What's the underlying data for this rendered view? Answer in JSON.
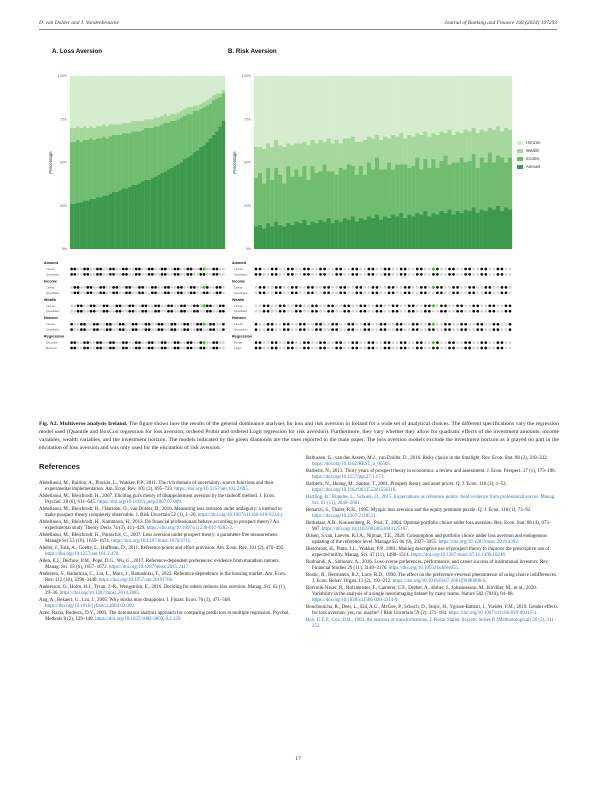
{
  "header": {
    "authors": "D. van Dolder and J. Vandenbroucke",
    "journal": "Journal of Banking and Finance 168 (2024) 107293"
  },
  "chart_data": [
    {
      "type": "area",
      "title": "A. Loss Aversion",
      "ylabel": "Percentage",
      "ylim": [
        0,
        100
      ],
      "yticks": [
        "0%",
        "25%",
        "50%",
        "75%",
        "100%"
      ],
      "series_colors": {
        "Amount": "#3d9a4a",
        "Income": "#70bd6f",
        "Wealth": "#a6d79c",
        "Horizon": "#d5ecce"
      },
      "x": [
        1,
        2,
        3,
        4,
        5,
        6,
        7,
        8,
        9,
        10,
        11,
        12,
        13,
        14,
        15,
        16,
        17,
        18,
        19,
        20,
        21,
        22,
        23,
        24,
        25,
        26,
        27,
        28,
        29,
        30,
        31,
        32,
        33,
        34,
        35,
        36,
        37,
        38,
        39,
        40,
        41,
        42,
        43,
        44,
        45,
        46,
        47,
        48
      ],
      "series": [
        {
          "name": "Amount",
          "values": [
            26,
            26,
            27,
            27,
            28,
            28,
            29,
            29,
            30,
            30,
            31,
            31,
            32,
            33,
            33,
            34,
            35,
            35,
            36,
            37,
            37,
            38,
            39,
            40,
            40,
            41,
            42,
            43,
            44,
            45,
            46,
            47,
            48,
            49,
            50,
            52,
            53,
            54,
            56,
            57,
            59,
            60,
            62,
            64,
            66,
            68,
            71,
            74
          ]
        },
        {
          "name": "Income",
          "values": [
            36,
            36,
            36,
            35,
            35,
            35,
            35,
            34,
            34,
            34,
            34,
            33,
            33,
            33,
            33,
            32,
            32,
            32,
            31,
            31,
            31,
            30,
            30,
            30,
            30,
            29,
            29,
            28,
            28,
            28,
            27,
            27,
            26,
            26,
            26,
            25,
            25,
            24,
            24,
            23,
            22,
            22,
            21,
            20,
            20,
            19,
            17,
            16
          ]
        },
        {
          "name": "Wealth",
          "values": [
            8,
            8,
            8,
            8,
            8,
            7,
            7,
            7,
            7,
            7,
            7,
            7,
            7,
            6,
            6,
            6,
            6,
            6,
            6,
            6,
            6,
            6,
            5,
            5,
            5,
            5,
            5,
            5,
            5,
            5,
            4,
            4,
            4,
            4,
            4,
            4,
            4,
            4,
            3,
            3,
            3,
            3,
            3,
            3,
            3,
            3,
            2,
            2
          ]
        },
        {
          "name": "Horizon",
          "values": [
            30,
            30,
            29,
            30,
            29,
            30,
            29,
            30,
            29,
            29,
            28,
            29,
            28,
            28,
            28,
            28,
            27,
            27,
            27,
            26,
            26,
            26,
            26,
            25,
            25,
            25,
            24,
            24,
            23,
            22,
            23,
            22,
            22,
            21,
            20,
            19,
            18,
            18,
            17,
            17,
            16,
            15,
            14,
            13,
            11,
            10,
            10,
            8
          ]
        }
      ],
      "spec_rows": [
        {
          "group": "Amount",
          "rows": [
            "Linear",
            "Quadratic"
          ]
        },
        {
          "group": "Income",
          "rows": [
            "Linear",
            "Quadratic"
          ]
        },
        {
          "group": "Wealth",
          "rows": [
            "Linear",
            "Quadratic"
          ]
        },
        {
          "group": "Horizon",
          "rows": [
            "Linear",
            "Quadratic"
          ]
        },
        {
          "group": "Regression",
          "rows": [
            "Quantile",
            "BoxCox"
          ]
        }
      ],
      "highlight_column": 42
    },
    {
      "type": "area",
      "title": "B. Risk Aversion",
      "ylabel": "Percentage",
      "ylim": [
        0,
        100
      ],
      "yticks": [
        "0%",
        "25%",
        "50%",
        "75%",
        "100%"
      ],
      "legend": [
        "Horizon",
        "Wealth",
        "Income",
        "Amount"
      ],
      "legend_position": "right",
      "x": [
        1,
        2,
        3,
        4,
        5,
        6,
        7,
        8,
        9,
        10,
        11,
        12,
        13,
        14,
        15,
        16,
        17,
        18,
        19,
        20,
        21,
        22,
        23,
        24,
        25,
        26,
        27,
        28,
        29,
        30,
        31,
        32,
        33,
        34,
        35,
        36,
        37,
        38,
        39,
        40,
        41,
        42,
        43,
        44,
        45,
        46,
        47,
        48,
        49,
        50,
        51,
        52,
        53,
        54,
        55,
        56,
        57,
        58,
        59,
        60,
        61,
        62,
        63,
        64
      ],
      "series": [
        {
          "name": "Amount",
          "values": [
            13,
            14,
            12,
            15,
            13,
            16,
            14,
            13,
            15,
            14,
            16,
            15,
            17,
            14,
            16,
            15,
            17,
            16,
            18,
            15,
            17,
            16,
            18,
            17,
            19,
            16,
            18,
            17,
            19,
            18,
            20,
            17,
            19,
            18,
            20,
            19,
            21,
            18,
            20,
            19,
            21,
            20,
            22,
            19,
            21,
            20,
            22,
            21,
            23,
            20,
            22,
            21,
            23,
            22,
            24,
            21,
            23,
            22,
            24,
            23,
            25,
            22,
            24,
            23
          ]
        },
        {
          "name": "Income",
          "values": [
            28,
            30,
            26,
            32,
            27,
            31,
            29,
            25,
            33,
            28,
            30,
            27,
            31,
            26,
            32,
            29,
            28,
            33,
            27,
            30,
            26,
            31,
            28,
            32,
            29,
            27,
            30,
            26,
            31,
            28,
            33,
            29,
            27,
            32,
            26,
            30,
            28,
            31,
            27,
            29,
            32,
            26,
            30,
            28,
            31,
            27,
            29,
            33,
            26,
            30,
            28,
            32,
            27,
            29,
            31,
            26,
            30,
            28,
            32,
            27,
            29,
            31,
            26,
            30
          ]
        },
        {
          "name": "Wealth",
          "values": [
            18,
            15,
            20,
            14,
            19,
            16,
            17,
            21,
            13,
            18,
            15,
            19,
            14,
            20,
            15,
            17,
            18,
            13,
            19,
            16,
            20,
            14,
            18,
            15,
            17,
            19,
            14,
            20,
            15,
            18,
            13,
            17,
            19,
            14,
            20,
            16,
            18,
            15,
            19,
            17,
            14,
            20,
            16,
            18,
            15,
            19,
            17,
            13,
            20,
            16,
            18,
            14,
            19,
            17,
            15,
            20,
            16,
            18,
            14,
            19,
            17,
            15,
            20,
            16
          ]
        },
        {
          "name": "Horizon",
          "values": [
            41,
            41,
            42,
            39,
            41,
            37,
            40,
            41,
            39,
            40,
            39,
            39,
            38,
            40,
            37,
            39,
            37,
            38,
            36,
            39,
            37,
            39,
            36,
            36,
            35,
            38,
            38,
            37,
            35,
            36,
            34,
            37,
            35,
            36,
            34,
            35,
            33,
            36,
            34,
            35,
            33,
            34,
            32,
            35,
            33,
            34,
            32,
            33,
            31,
            34,
            32,
            33,
            31,
            32,
            30,
            33,
            31,
            32,
            30,
            31,
            29,
            32,
            30,
            31
          ]
        }
      ],
      "spec_rows": [
        {
          "group": "Amount",
          "rows": [
            "Linear",
            "Quadratic"
          ]
        },
        {
          "group": "Income",
          "rows": [
            "Linear",
            "Quadratic"
          ]
        },
        {
          "group": "Wealth",
          "rows": [
            "Linear",
            "Quadratic"
          ]
        },
        {
          "group": "Horizon",
          "rows": [
            "Linear",
            "Quadratic"
          ]
        },
        {
          "group": "Regression",
          "rows": [
            "Probit",
            "Logit"
          ]
        }
      ],
      "highlight_column": 45
    }
  ],
  "caption": {
    "label": "Fig. A2. Multiverse analysis Ireland.",
    "text": " The figure shows how the results of the general dominance analyses for loss and risk aversion in Ireland for a wide set of analytical choices. The different specifications vary the regression model used (Quantile and BoxCox regression for loss aversion; ordered Probit and ordered Logit regression for risk aversion). Furthermore, they vary whether they allow for quadratic effects of the investment amounts, income variables, wealth variables, and the investment horizon. The models indicated by the green diamonds are the ones reported in the main paper. The loss aversion models exclude the investment horizon as it played no part in the elicitation of loss aversion and was only used for the elicitation of risk aversion."
  },
  "references_heading": "References",
  "references_left": [
    {
      "text": "Abdellaoui, M., Baillon, A., Placido, L., Wakker, P.P., 2011. The rich domain of uncertainty: source functions and their experimental implementation. Am. Econ. Rev. 101 (2), 695–723. ",
      "link": "https://doi.org/10.1257/aer.101.2.695."
    },
    {
      "text": "Abdellaoui, M., Bleichrodt, H., 2007. Eliciting gul's theory of disappointment aversion by the tradeoff method. J. Econ. Psychol. 28 (6), 631–645. ",
      "link": "https://doi.org/10.1016/j.joep.2007.07.009."
    },
    {
      "text": "Abdellaoui, M., Bleichrodt, H., l'Haridon, O., van Dolder, D., 2016. Measuring loss aversion under ambiguity: a method to make prospect theory completely observable. J. Risk Uncertain 52 (1), 1–20. ",
      "link": "https://doi.org/10.1007/s11166-016-9234-y."
    },
    {
      "text": "Abdellaoui, M., Bleichrodt, H., Kammoun, H., 2013. Do financial professionals behave according to prospect theory? An experimental study. Theory Decis 74 (3), 411–429. ",
      "link": "https://doi.org/10.1007/s11238-011-9282-3."
    },
    {
      "text": "Abdellaoui, M., Bleichrodt, H., Paraschiv, C., 2007. Loss aversion under prospect theory: a parameter-free measurement. Manage Sci 53 (10), 1659–1674. ",
      "link": "https://doi.org/10.1287/mnsc.1070.0711."
    },
    {
      "text": "Abeler, J., Falk, A., Goette, L., Huffman, D., 2011. Reference points and effort provision. Am. Econ. Rev. 101 (2), 470–492. ",
      "link": "https://doi.org/10.1257/aer.101.2.470."
    },
    {
      "text": "Allen, E.J., Dechow, P.M., Pope, D.G., Wu, G., 2017. Reference-dependent preferences: evidence from marathon runners. Manag. Sci. 63 (6), 1657–1672. ",
      "link": "https://doi.org/10.1287/mnsc.2015.2417."
    },
    {
      "text": "Andersen, S., Badarinza, C., Liu, L., Marx, J., Ramadorai, T., 2022. Reference dependence in the housing market. Am. Econ. Rev. 112 (10), 3398–3440. ",
      "link": "https://doi.org/10.1257/aer.20191766."
    },
    {
      "text": "Andersson, O., Holm, H.J., Tyran, J.-R., Wengström, E., 2016. Deciding for others reduces loss aversion. Manag. Sci. 62 (1), 29–36. ",
      "link": "https://doi.org/10.1287/mnsc.2014.2085."
    },
    {
      "text": "Ang, A., Bekaert, G., Liu, J., 2005. Why stocks may disappoint. J. Financ Econ. 76 (3), 471–508. ",
      "link": "https://doi.org/10.1016/j.jfineco.2004.03.009."
    },
    {
      "text": "Azen, Razia, Budescu, D.V., 2003. The dominance analysis approach for comparing predictors in multiple regression. Psychol. Methods 8 (2), 129–148. ",
      "link": "https://doi.org/10.1037/1082-989X.8.2.129."
    }
  ],
  "references_right": [
    {
      "text": "Baltussen, G., van den Assem, M.J., van Dolder, D., 2016. Risky choice in the limelight. Rev. Econ. Stat. 98 (2), 318–332. ",
      "link": "https://doi.org/10.1162/REST_a_00505."
    },
    {
      "text": "Barberis, N., 2013. Thirty years of prospect theory in economics: a review and assessment. J. Econ. Perspect. 27 (1), 173–196. ",
      "link": "https://doi.org/10.1257/jep.27.1.173."
    },
    {
      "text": "Barberis, N., Huang, M., Santos, T., 2001. Prospect theory and asset prices. Q. J. Econ. 116 (1), 1–53. ",
      "link": "https://doi.org/10.1162/003355301556310."
    },
    {
      "text": "",
      "link": "Bartling, B., Brandes, L., Schunk, D., 2015. Expectations as reference points: field evidence from professional soccer. Manag. Sci. 61 (11), 2646–2661."
    },
    {
      "text": "Benartzi, S., Thaler, R.H., 1995. Myopic loss aversion and the equity premium puzzle. Q. J. Econ. 110 (1), 73–92. ",
      "link": "https://doi.org/10.2307/2118511."
    },
    {
      "text": "Berkelaar, A.B., Kouwenberg, R., Post, T., 2004. Optimal portfolio choice under loss aversion. Rev. Econ. Stat. 86 (4), 973–987. ",
      "link": "https://doi.org/10.1162/0034653043125167."
    },
    {
      "text": "Bilsen, S.van, Laeven, R.J.A., Nijman, T.E., 2020. Consumption and portfolio choice under loss aversion and endogenous updating of the reference level. Manage Sci 66 (9), 3927–3955. ",
      "link": "https://doi.org/10.1287/mnsc.2019.3393."
    },
    {
      "text": "Bleichrodt, H., Pinto, J.L., Wakker, P.P., 2001. Making descriptive use of prospect theory to improve the prescriptive use of expected utility. Manag. Sci. 47 (11), 1498–1514. ",
      "link": "https://doi.org/10.1287/mnsc.47.11.1498.10248."
    },
    {
      "text": "Bodnaruk, A., Simonov, A., 2016. Loss-averse preferences, performance, and career success of institutional investors. Rev. Financial Studies 29 (11), 3140–3176. ",
      "link": "https://doi.org/10.1093/rfs/hhw055."
    },
    {
      "text": "Bostic, R., Herrnstein, R.J., Luce, R.D., 1990. The effect on the preference-reversal phenomenon of using choice indifferences. J. Econ. Behav. Organ. 13 (2), 193–212. ",
      "link": "https://doi.org/10.1016/0167-2681(90)90086-S."
    },
    {
      "text": "Botvinik-Nezer, R., Holzmeister, F., Camerer, C.F., Dreber, A., Huber, J., Johannesson, M., Kirchler, M., et al., 2020. Variability in the analysis of a single neuroimaging dataset by many teams. Nature 582 (7810), 84–88. ",
      "link": "https://doi.org/10.1038/s41586-020-2314-9."
    },
    {
      "text": "Bouchouicha, R., Deer, L., Eid, A.G., McGee, P., Schoch, D., Stojic, H., Ygosse-Battisti, J., Vieider, F.M., 2019. Gender effects for loss aversion: yes, no, maybe? J Risk Uncertain 59 (2), 171–184. ",
      "link": "https://doi.org/10.1007/s11166-019-09315-3."
    },
    {
      "text": "",
      "link": "Box, G.E.P., Cox, D.R., 1964. An analysis of transformations. J. Royal Statist. Society. Series B (Methodological) 26 (2), 211–252."
    }
  ],
  "page_number": "17"
}
